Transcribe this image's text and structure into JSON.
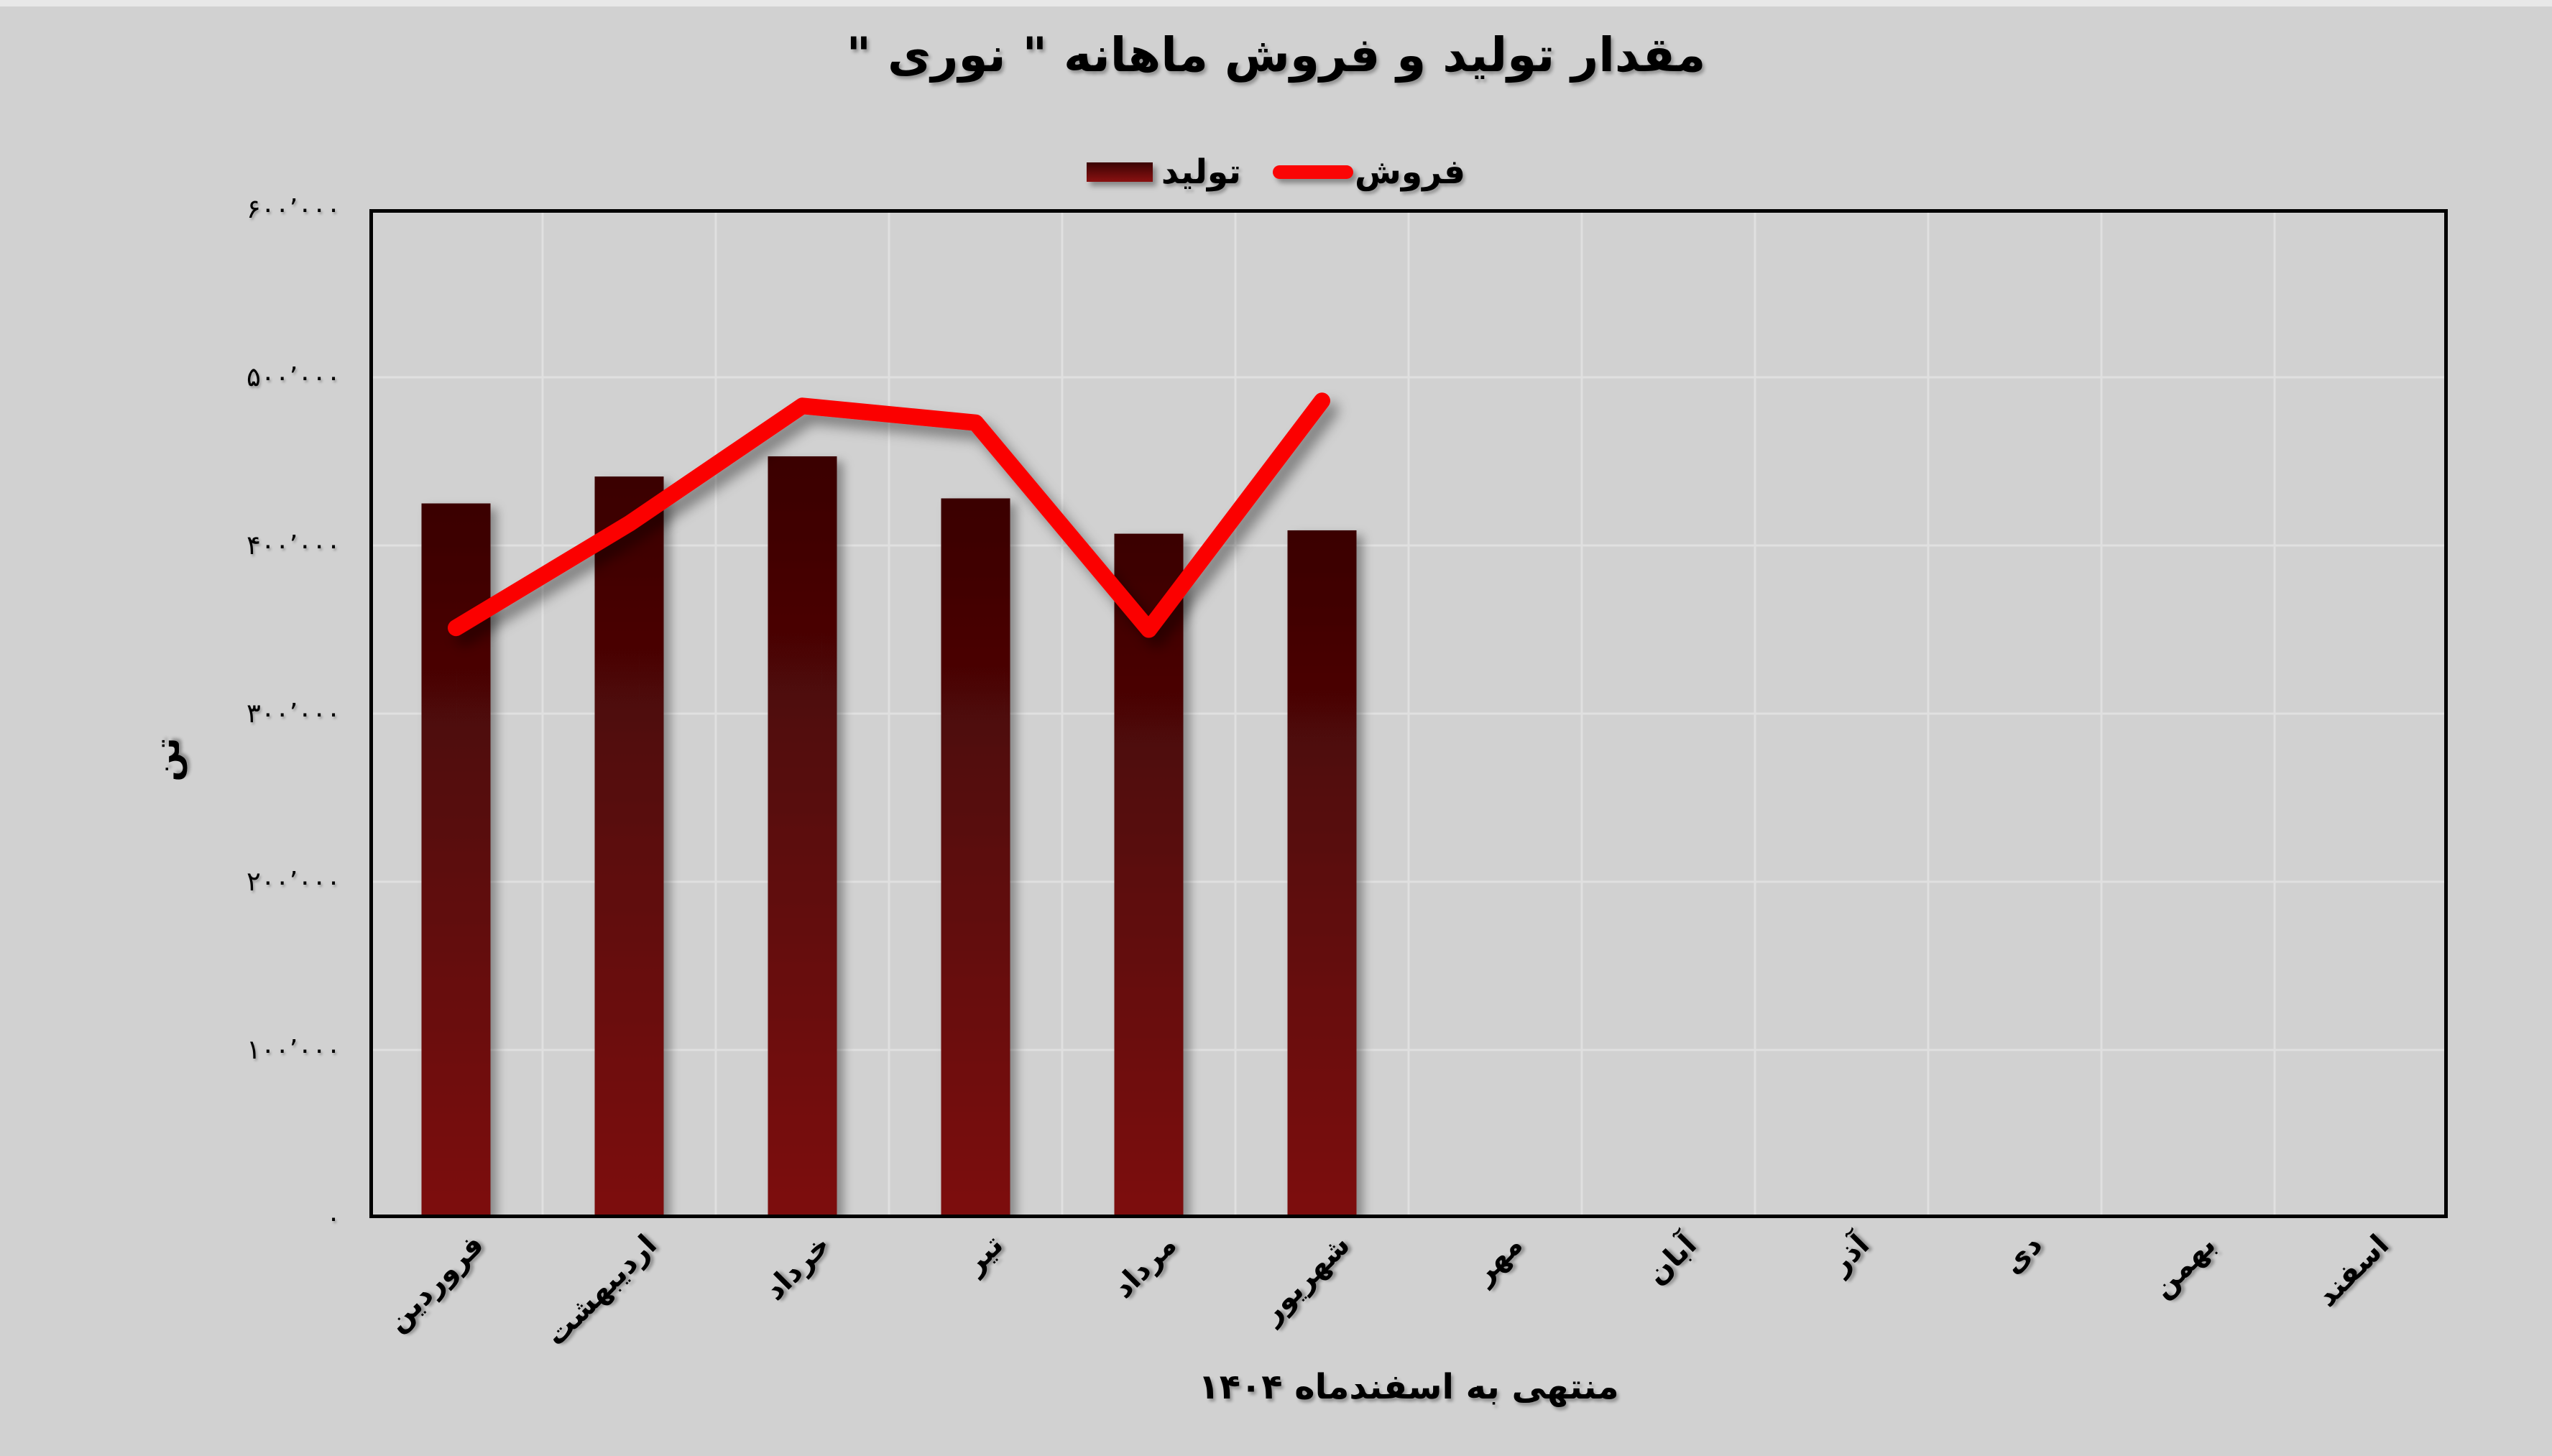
{
  "title": "مقدار تولید و فروش ماهانه \" نوری \"",
  "legend": {
    "production_label": "تولید",
    "sales_label": "فروش"
  },
  "x_axis": {
    "title": "منتهی به اسفندماه ۱۴۰۴"
  },
  "y_axis": {
    "title": "تن"
  },
  "colors": {
    "background": "#d1d1d1",
    "top_strip": "#e8e8e8",
    "grid": "#e0e0e0",
    "axis_border": "#000000",
    "bar_gradient_top": "#3a0303",
    "bar_gradient_bottom": "#7d1010",
    "line": "#fb0505",
    "text": "#000000"
  },
  "chart_data": {
    "type": "bar",
    "title": "مقدار تولید و فروش ماهانه \" نوری \"",
    "xlabel": "منتهی به اسفندماه ۱۴۰۴",
    "ylabel": "تن",
    "ylim": [
      0,
      600000
    ],
    "grid": true,
    "legend_position": "top-center",
    "categories": [
      "فروردین",
      "اردیبهشت",
      "خرداد",
      "تیر",
      "مرداد",
      "شهریور",
      "مهر",
      "آبان",
      "آذر",
      "دی",
      "بهمن",
      "اسفند"
    ],
    "series": [
      {
        "name": "تولید",
        "type": "bar",
        "values": [
          425000,
          441000,
          453000,
          428000,
          407000,
          409000,
          null,
          null,
          null,
          null,
          null,
          null
        ]
      },
      {
        "name": "فروش",
        "type": "line",
        "values": [
          351000,
          413000,
          483000,
          473000,
          350000,
          486000,
          null,
          null,
          null,
          null,
          null,
          null
        ]
      }
    ],
    "y_ticks": [
      {
        "value": 600000,
        "label": "۶۰۰٬۰۰۰"
      },
      {
        "value": 500000,
        "label": "۵۰۰٬۰۰۰"
      },
      {
        "value": 400000,
        "label": "۴۰۰٬۰۰۰"
      },
      {
        "value": 300000,
        "label": "۳۰۰٬۰۰۰"
      },
      {
        "value": 200000,
        "label": "۲۰۰٬۰۰۰"
      },
      {
        "value": 100000,
        "label": "۱۰۰٬۰۰۰"
      },
      {
        "value": 0,
        "label": "۰"
      }
    ]
  }
}
